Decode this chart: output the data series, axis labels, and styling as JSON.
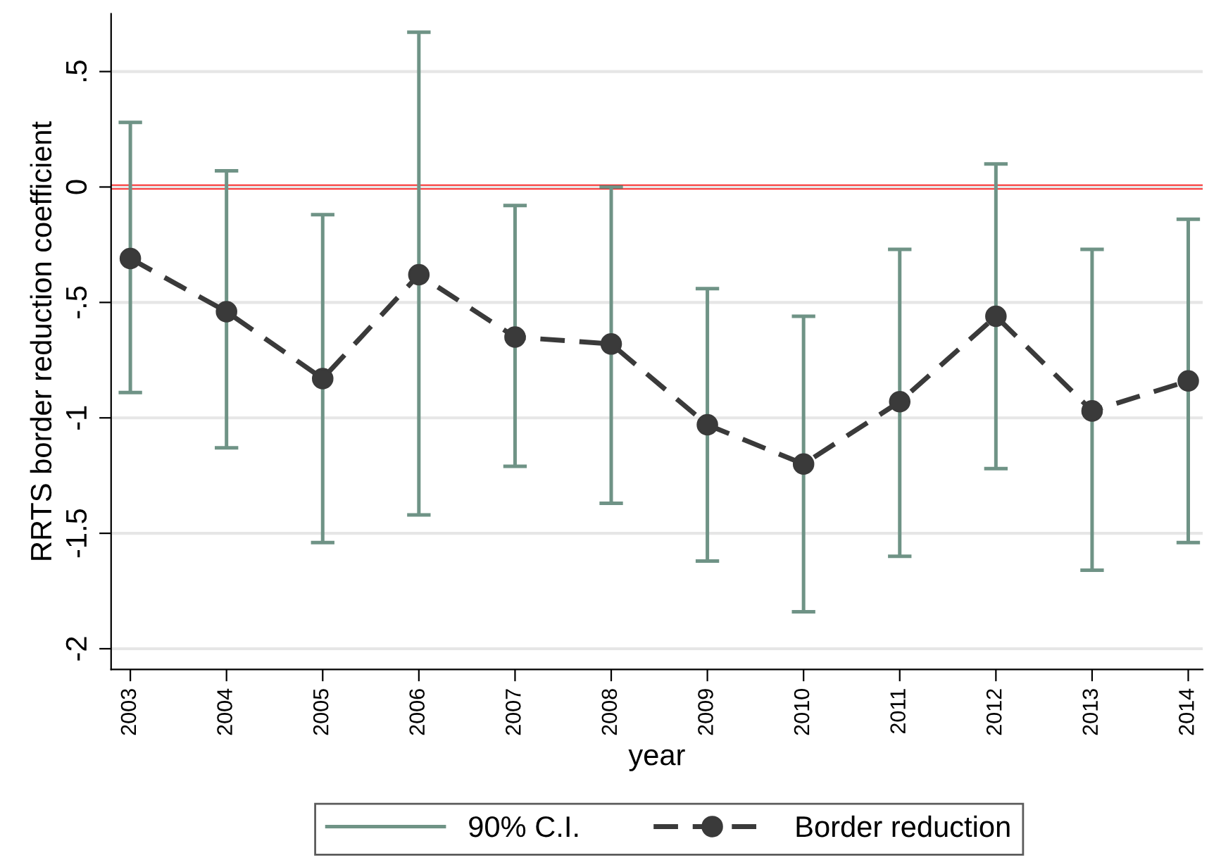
{
  "chart_data": {
    "type": "line",
    "xlabel": "year",
    "ylabel": "RRTS border reduction coefficient",
    "x": [
      2003,
      2004,
      2005,
      2006,
      2007,
      2008,
      2009,
      2010,
      2011,
      2012,
      2013,
      2014
    ],
    "series": [
      {
        "name": "Border reduction",
        "color": "#3a3a3a",
        "line_style": "dashed",
        "marker": "circle",
        "values": [
          -0.31,
          -0.54,
          -0.83,
          -0.38,
          -0.65,
          -0.68,
          -1.03,
          -1.2,
          -0.93,
          -0.56,
          -0.97,
          -0.84
        ],
        "errors": [
          [
            -0.89,
            0.28
          ],
          [
            -1.13,
            0.07
          ],
          [
            -1.54,
            -0.12
          ],
          [
            -1.42,
            0.67
          ],
          [
            -1.21,
            -0.08
          ],
          [
            -1.37,
            0.0
          ],
          [
            -1.62,
            -0.44
          ],
          [
            -1.84,
            -0.56
          ],
          [
            -1.6,
            -0.27
          ],
          [
            -1.22,
            0.1
          ],
          [
            -1.66,
            -0.27
          ],
          [
            -1.54,
            -0.14
          ]
        ]
      }
    ],
    "annotations": [
      "90% C.I."
    ],
    "xlim": [
      2002.8,
      2014.15
    ],
    "xticks": [
      2003,
      2004,
      2005,
      2006,
      2007,
      2008,
      2009,
      2010,
      2011,
      2012,
      2013,
      2014
    ],
    "ylim": [
      -2.09,
      0.75
    ],
    "yticks": [
      {
        "value": 0.5,
        "label": ".5"
      },
      0,
      {
        "value": -0.5,
        "label": "-.5"
      },
      {
        "value": -1,
        "label": "-1"
      },
      {
        "value": -1.5,
        "label": "-1.5"
      },
      {
        "value": -2,
        "label": "-2"
      }
    ],
    "ref_lines": [
      {
        "axis": "y",
        "value": 0,
        "color": "#ff0000",
        "line_style": "solid"
      }
    ],
    "grid": "y",
    "legend": "bottom"
  }
}
